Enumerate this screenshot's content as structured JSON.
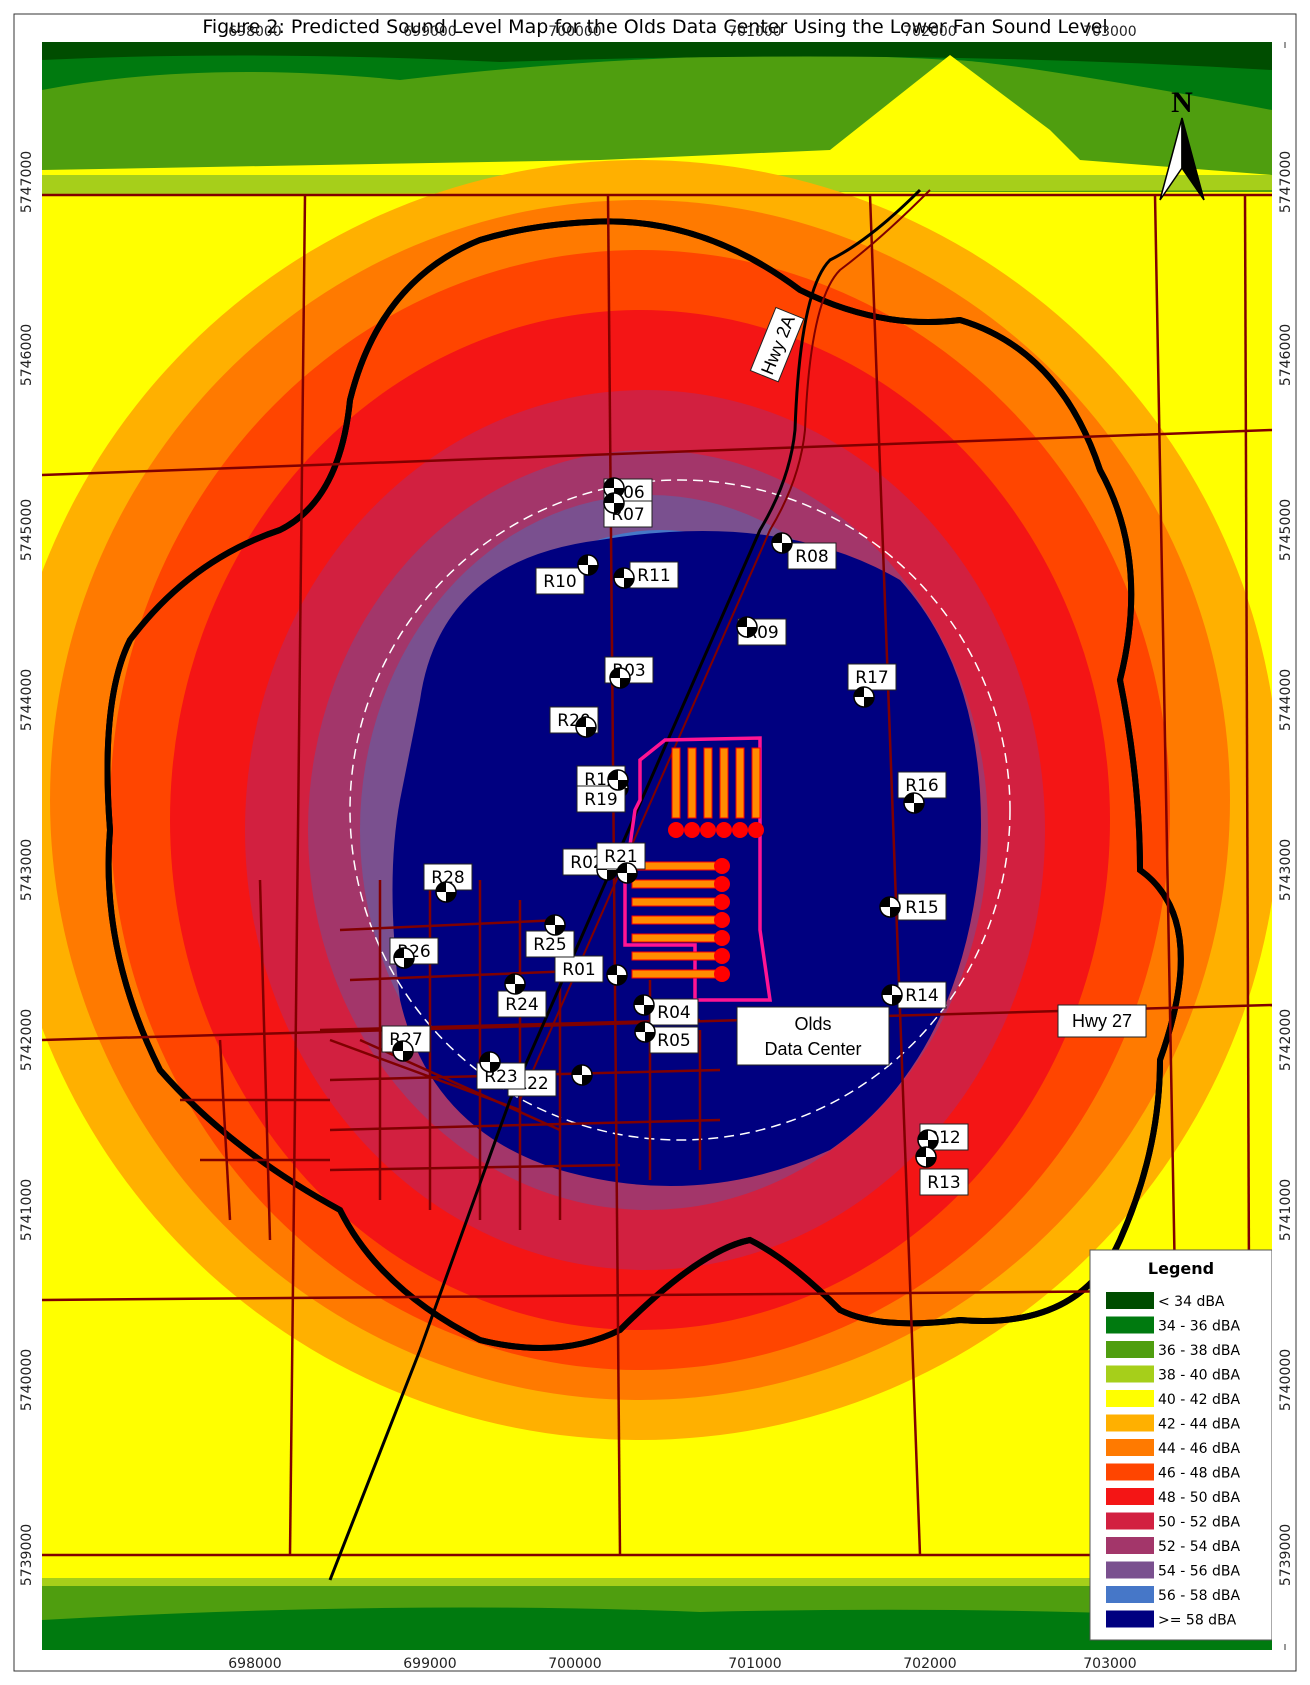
{
  "title": "Figure 2: Predicted Sound Level Map for the Olds Data Center Using the Lower Fan Sound Level",
  "axes": {
    "x_ticks": [
      "698000",
      "699000",
      "700000",
      "701000",
      "702000",
      "703000"
    ],
    "y_ticks": [
      "5747000",
      "5746000",
      "5745000",
      "5744000",
      "5743000",
      "5742000",
      "5741000",
      "5740000",
      "5739000"
    ]
  },
  "north_arrow": {
    "label": "N"
  },
  "map_labels": {
    "hwy2a": "Hwy 2A",
    "hwy27": "Hwy 27",
    "facility_line1": "Olds",
    "facility_line2": "Data Center"
  },
  "receptors": [
    {
      "id": "R01"
    },
    {
      "id": "R02"
    },
    {
      "id": "R03"
    },
    {
      "id": "R04"
    },
    {
      "id": "R05"
    },
    {
      "id": "R06"
    },
    {
      "id": "R07"
    },
    {
      "id": "R08"
    },
    {
      "id": "R09"
    },
    {
      "id": "R10"
    },
    {
      "id": "R11"
    },
    {
      "id": "R12"
    },
    {
      "id": "R13"
    },
    {
      "id": "R14"
    },
    {
      "id": "R15"
    },
    {
      "id": "R16"
    },
    {
      "id": "R17"
    },
    {
      "id": "R18"
    },
    {
      "id": "R19"
    },
    {
      "id": "R20"
    },
    {
      "id": "R21"
    },
    {
      "id": "R22"
    },
    {
      "id": "R23"
    },
    {
      "id": "R24"
    },
    {
      "id": "R25"
    },
    {
      "id": "R26"
    },
    {
      "id": "R27"
    },
    {
      "id": "R28"
    }
  ],
  "legend": {
    "title": "Legend",
    "items": [
      {
        "label": "< 34 dBA",
        "color": "#004d00"
      },
      {
        "label": "34 - 36 dBA",
        "color": "#007a0f"
      },
      {
        "label": "36 - 38 dBA",
        "color": "#4f9e0f"
      },
      {
        "label": "38 - 40 dBA",
        "color": "#a6cf1a"
      },
      {
        "label": "40 - 42 dBA",
        "color": "#ffff00"
      },
      {
        "label": "42 - 44 dBA",
        "color": "#ffb000"
      },
      {
        "label": "44 - 46 dBA",
        "color": "#ff7a00"
      },
      {
        "label": "46 - 48 dBA",
        "color": "#ff4500"
      },
      {
        "label": "48 - 50 dBA",
        "color": "#f41515"
      },
      {
        "label": "50 - 52 dBA",
        "color": "#d22040"
      },
      {
        "label": "52 - 54 dBA",
        "color": "#a3366a"
      },
      {
        "label": "54 - 56 dBA",
        "color": "#7a508f"
      },
      {
        "label": "56 - 58 dBA",
        "color": "#4677c8"
      },
      {
        "label": ">= 58 dBA",
        "color": "#000080"
      }
    ]
  }
}
